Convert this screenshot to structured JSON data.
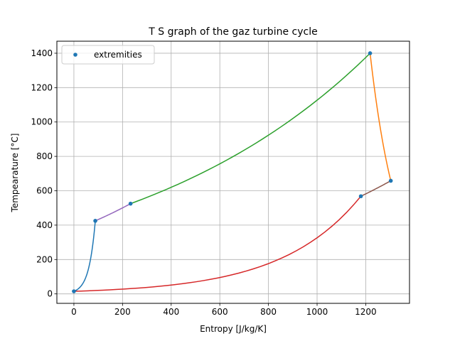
{
  "chart_data": {
    "type": "line",
    "title": "T S graph of the gaz turbine cycle",
    "xlabel": "Entropy [J/kg/K]",
    "ylabel": "Tempearature [°C]",
    "xlim": [
      -70,
      1380
    ],
    "ylim": [
      -55,
      1470
    ],
    "xticks": [
      0,
      200,
      400,
      600,
      800,
      1000,
      1200
    ],
    "yticks": [
      0,
      200,
      400,
      600,
      800,
      1000,
      1200,
      1400
    ],
    "grid": true,
    "legend": {
      "position": "top-left",
      "entries": [
        "extremities"
      ]
    },
    "series": [
      {
        "color": "#1f77b4",
        "curve": "exp",
        "x": [
          0,
          88
        ],
        "y": [
          15,
          425
        ]
      },
      {
        "color": "#9467bd",
        "curve": "exp",
        "x": [
          88,
          233
        ],
        "y": [
          425,
          525
        ]
      },
      {
        "color": "#2ca02c",
        "curve": "exp",
        "x": [
          233,
          1218
        ],
        "y": [
          525,
          1400
        ]
      },
      {
        "color": "#ff7f0e",
        "curve": "log",
        "x": [
          1218,
          1303
        ],
        "y": [
          1400,
          658
        ]
      },
      {
        "color": "#8c564b",
        "curve": "exp",
        "x": [
          1180,
          1303
        ],
        "y": [
          568,
          658
        ]
      },
      {
        "color": "#d62728",
        "curve": "exp",
        "x": [
          0,
          1180
        ],
        "y": [
          15,
          568
        ]
      }
    ],
    "extremities": {
      "name": "extremities",
      "color": "#1f77b4",
      "points": [
        [
          0,
          15
        ],
        [
          88,
          425
        ],
        [
          233,
          525
        ],
        [
          1218,
          1400
        ],
        [
          1303,
          658
        ],
        [
          1180,
          568
        ]
      ]
    }
  }
}
